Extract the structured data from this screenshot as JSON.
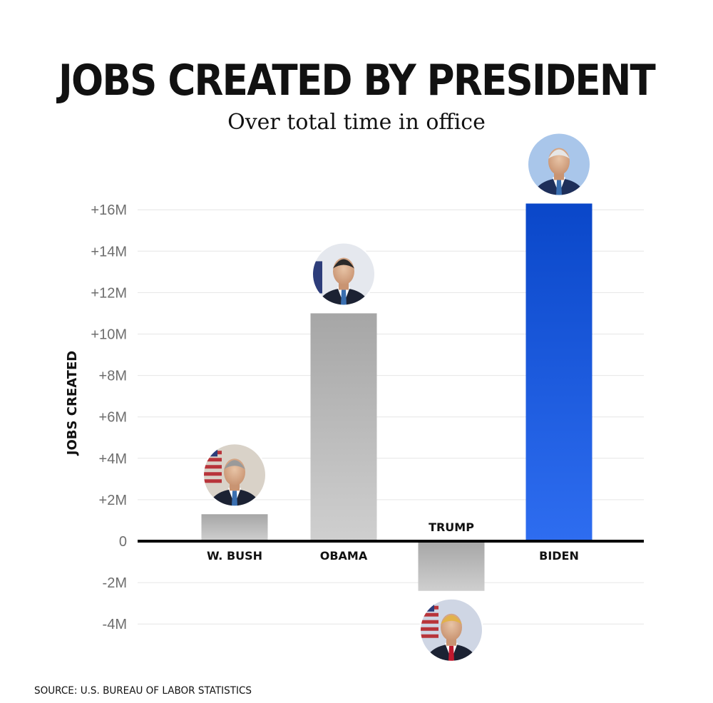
{
  "chart_data": {
    "type": "bar",
    "title": "JOBS CREATED BY PRESIDENT",
    "subtitle": "Over total time in office",
    "ylabel": "JOBS CREATED",
    "categories": [
      "W. BUSH",
      "OBAMA",
      "TRUMP",
      "BIDEN"
    ],
    "values": [
      1.3,
      11.0,
      -2.4,
      16.3
    ],
    "value_unit": "millions of jobs",
    "ylim": [
      -4,
      16
    ],
    "yticks": [
      16,
      14,
      12,
      10,
      8,
      6,
      4,
      2,
      0,
      -2,
      -4
    ],
    "ytick_labels": [
      "+16M",
      "+14M",
      "+12M",
      "+10M",
      "+8M",
      "+6M",
      "+4M",
      "+2M",
      "0",
      "-2M",
      "-4M"
    ],
    "grid": true,
    "legend": "none",
    "bar_colors": [
      "#b3b3b3",
      "#b3b3b3",
      "#b3b3b3",
      "#1f5fe0"
    ],
    "icons": [
      "avatar-bush",
      "avatar-obama",
      "avatar-trump",
      "avatar-biden"
    ],
    "source": "SOURCE: U.S. BUREAU OF LABOR STATISTICS"
  }
}
